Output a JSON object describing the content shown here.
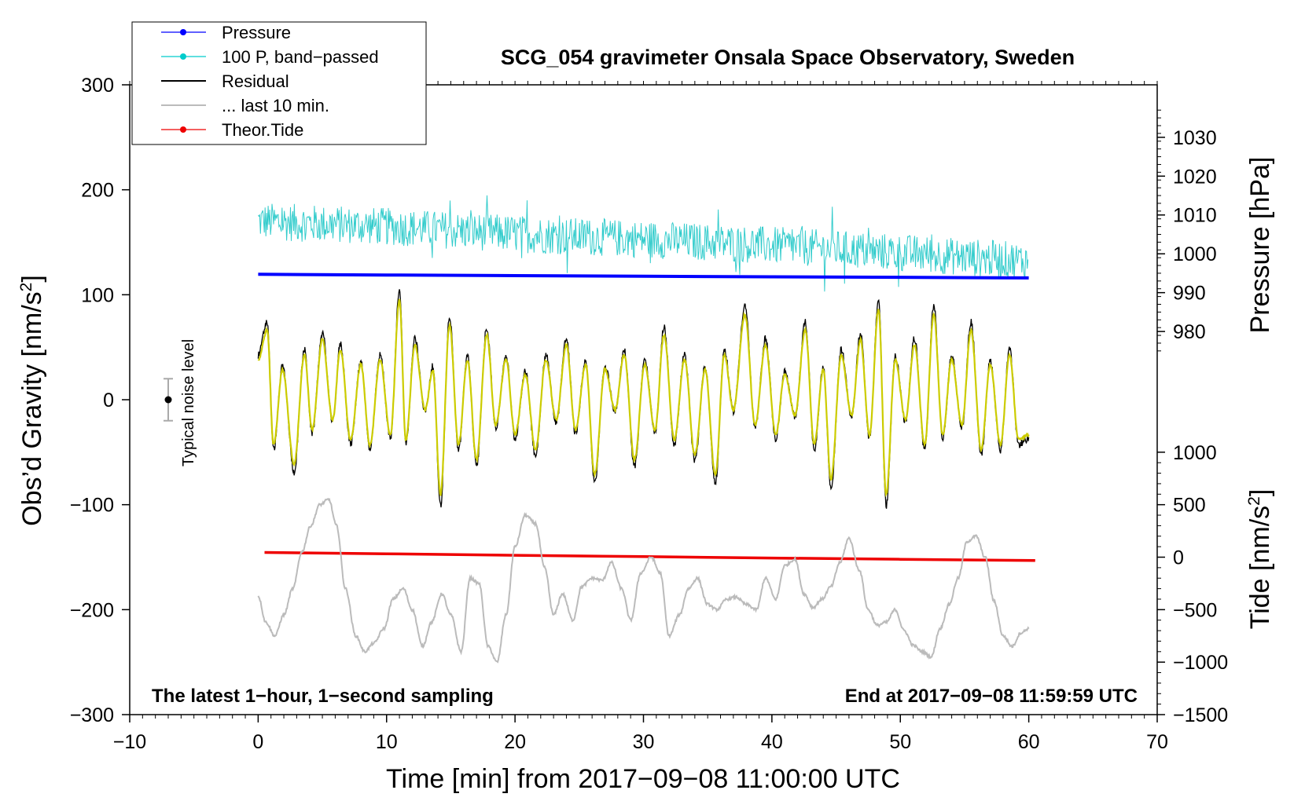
{
  "chart_data": {
    "type": "line",
    "title": "SCG_054 gravimeter Onsala Space Observatory, Sweden",
    "xlabel": "Time [min] from 2017−09−08 11:00:00 UTC",
    "ylabel": "Obs’d Gravity [nm/s²]",
    "ylabel_main": "Obs’d Gravity [nm/s",
    "ylabel_sup": "2",
    "ylabel_close": "]",
    "xlim": [
      -10,
      70
    ],
    "ylim": [
      -300,
      300
    ],
    "x_ticks": [
      -10,
      0,
      10,
      20,
      30,
      40,
      50,
      60,
      70
    ],
    "x_tick_labels": [
      "−10",
      "0",
      "10",
      "20",
      "30",
      "40",
      "50",
      "60",
      "70"
    ],
    "y_ticks": [
      -300,
      -200,
      -100,
      0,
      100,
      200,
      300
    ],
    "y_tick_labels": [
      "−300",
      "−200",
      "−100",
      "0",
      "100",
      "200",
      "300"
    ],
    "pressure_axis": {
      "label": "Pressure [hPa]",
      "ticks": [
        980,
        990,
        1000,
        1010,
        1020,
        1030
      ],
      "tick_labels": [
        "980",
        "990",
        "1000",
        "1010",
        "1020",
        "1030"
      ],
      "gravity_at_1000": 139,
      "gravity_per_hpa": 3.7
    },
    "tide_axis": {
      "label_main": "Tide [nm/s",
      "label_sup": "2",
      "label_close": "]",
      "ticks": [
        -1500,
        -1000,
        -500,
        0,
        500,
        1000
      ],
      "tick_labels": [
        "−1500",
        "−1000",
        "−500",
        "0",
        "500",
        "1000"
      ],
      "gravity_at_0": -150,
      "gravity_per_unit": 0.1
    },
    "legend": [
      {
        "label": "Pressure",
        "color": "#0000ff",
        "marker": true
      },
      {
        "label": "100 P, band−passed",
        "color": "#00cccc",
        "marker": true
      },
      {
        "label": "Residual",
        "color": "#000000",
        "marker": false
      },
      {
        "label": "... last 10 min.",
        "color": "#bbbbbb",
        "marker": false
      },
      {
        "label": "Theor.Tide",
        "color": "#ee0000",
        "marker": true
      }
    ],
    "noise_indicator": {
      "label": "Typical noise level",
      "x": -7,
      "center": 0,
      "half_range": 20
    },
    "note_left": "The latest 1−hour, 1−second sampling",
    "note_right": "End at 2017−09−08 11:59:59 UTC",
    "series": [
      {
        "name": "Pressure",
        "color": "#0000ff",
        "x": [
          0,
          10,
          20,
          30,
          40,
          50,
          60
        ],
        "y": [
          119.5,
          118.8,
          118.2,
          117.6,
          117.1,
          116.6,
          116.0
        ]
      },
      {
        "name": "100 P, band−passed",
        "color": "#33cccc",
        "baseline_x": [
          0,
          10,
          20,
          30,
          40,
          50,
          60
        ],
        "baseline_y": [
          170,
          165,
          158,
          153,
          147,
          140,
          132
        ],
        "noise_amplitude": 18
      },
      {
        "name": "Theor.Tide",
        "color": "#ee0000",
        "x": [
          0.5,
          10,
          20,
          30,
          40,
          50,
          60.5
        ],
        "y": [
          -145.5,
          -146.8,
          -148.2,
          -149.5,
          -150.8,
          -152.0,
          -153.2
        ]
      },
      {
        "name": "Residual",
        "color": "#000000",
        "x": [
          0,
          0.7,
          1.2,
          1.9,
          2.8,
          3.6,
          4.2,
          5.0,
          5.8,
          6.4,
          7.2,
          8.0,
          8.7,
          9.5,
          10.3,
          11.0,
          11.5,
          12.2,
          13.0,
          13.6,
          14.2,
          14.9,
          15.6,
          16.3,
          17.0,
          17.8,
          18.5,
          19.3,
          20.0,
          20.8,
          21.6,
          22.4,
          23.2,
          24.0,
          24.7,
          25.5,
          26.2,
          27.0,
          27.8,
          28.5,
          29.3,
          30.1,
          30.9,
          31.6,
          32.4,
          33.2,
          34.0,
          34.8,
          35.6,
          36.3,
          37.0,
          37.9,
          38.7,
          39.5,
          40.3,
          41.0,
          41.8,
          42.6,
          43.3,
          44.0,
          44.6,
          45.4,
          46.2,
          46.9,
          47.6,
          48.3,
          48.9,
          49.6,
          50.4,
          51.1,
          51.9,
          52.6,
          53.3,
          54.0,
          54.8,
          55.5,
          56.3,
          57.0,
          57.8,
          58.5,
          59.2,
          60.0
        ],
        "y": [
          40,
          70,
          -45,
          30,
          -65,
          45,
          -30,
          60,
          -20,
          50,
          -40,
          35,
          -45,
          40,
          -35,
          100,
          -40,
          55,
          -10,
          30,
          -95,
          75,
          -45,
          40,
          -60,
          65,
          -25,
          40,
          -35,
          25,
          -50,
          40,
          -20,
          55,
          -30,
          35,
          -75,
          30,
          -10,
          45,
          -60,
          35,
          -30,
          65,
          -40,
          40,
          -55,
          30,
          -75,
          45,
          -10,
          85,
          -25,
          55,
          -35,
          25,
          -15,
          70,
          -45,
          30,
          -80,
          45,
          -15,
          60,
          -35,
          90,
          -95,
          40,
          -20,
          55,
          -45,
          85,
          -35,
          40,
          -25,
          70,
          -50,
          35,
          -45,
          45,
          -40,
          -35
        ]
      },
      {
        "name": "Yellow smoothed residual",
        "color": "#cccc00",
        "x_from": 0,
        "x_to": 60
      },
      {
        "name": "... last 10 min.",
        "color": "#bbbbbb",
        "x": [
          0,
          0.6,
          1.3,
          2.0,
          2.7,
          3.4,
          4.1,
          4.8,
          5.5,
          6.1,
          6.8,
          7.6,
          8.3,
          9.0,
          9.8,
          10.5,
          11.3,
          12.0,
          12.8,
          13.5,
          14.3,
          15.0,
          15.8,
          16.5,
          17.2,
          17.9,
          18.6,
          19.3,
          20.0,
          20.8,
          21.6,
          22.3,
          23.0,
          23.7,
          24.5,
          25.2,
          26.0,
          26.8,
          27.5,
          28.3,
          29.0,
          29.8,
          30.6,
          31.3,
          32.0,
          32.8,
          33.5,
          34.2,
          35.0,
          35.7,
          36.5,
          37.2,
          38.0,
          38.8,
          39.5,
          40.3,
          41.0,
          41.8,
          42.5,
          43.2,
          43.9,
          44.6,
          45.3,
          46.0,
          46.8,
          47.5,
          48.2,
          48.9,
          49.6,
          50.3,
          51.0,
          51.7,
          52.4,
          53.1,
          53.8,
          54.5,
          55.2,
          55.9,
          56.6,
          57.3,
          58.0,
          58.7,
          59.4,
          60.0
        ],
        "y": [
          -187,
          -212,
          -225,
          -205,
          -180,
          -145,
          -120,
          -100,
          -95,
          -120,
          -180,
          -225,
          -240,
          -232,
          -218,
          -190,
          -180,
          -200,
          -235,
          -212,
          -185,
          -205,
          -240,
          -170,
          -175,
          -235,
          -250,
          -205,
          -140,
          -110,
          -118,
          -160,
          -205,
          -185,
          -210,
          -178,
          -170,
          -172,
          -155,
          -180,
          -210,
          -165,
          -150,
          -165,
          -225,
          -205,
          -180,
          -170,
          -195,
          -200,
          -190,
          -188,
          -195,
          -200,
          -170,
          -190,
          -158,
          -152,
          -185,
          -198,
          -190,
          -178,
          -155,
          -132,
          -162,
          -200,
          -215,
          -212,
          -200,
          -220,
          -234,
          -240,
          -245,
          -218,
          -195,
          -170,
          -135,
          -130,
          -150,
          -192,
          -225,
          -235,
          -222,
          -218
        ]
      }
    ]
  }
}
